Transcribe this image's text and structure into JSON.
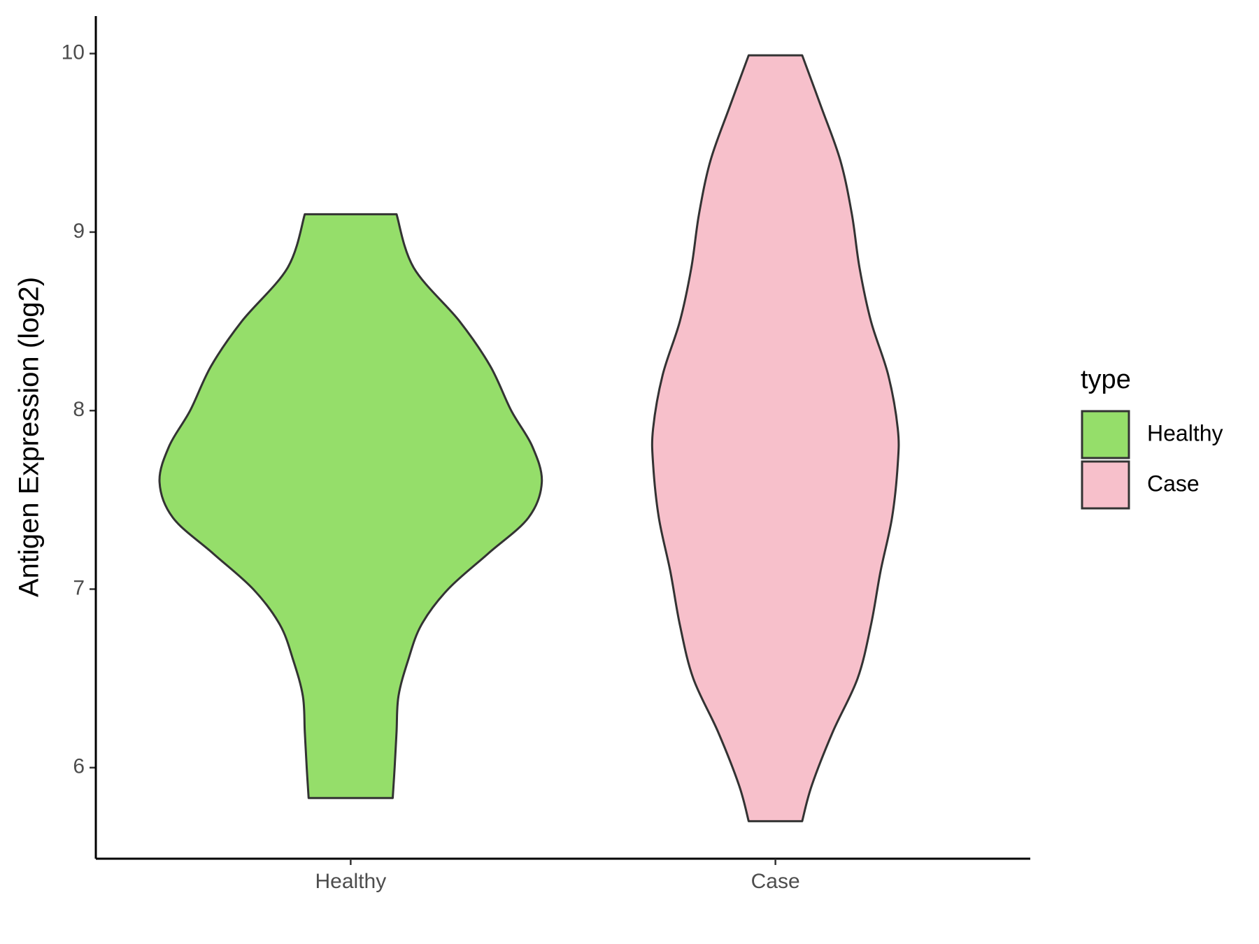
{
  "chart_data": {
    "type": "violin",
    "y_label": "Antigen Expression (log2)",
    "categories": [
      "Healthy",
      "Case"
    ],
    "legend_title": "type",
    "series": [
      {
        "name": "Healthy",
        "color": "#95DE6A",
        "y": [
          9.1,
          8.8,
          8.5,
          8.25,
          8.0,
          7.8,
          7.6,
          7.4,
          7.2,
          7.0,
          6.8,
          6.6,
          6.4,
          6.2,
          6.0,
          5.83
        ],
        "width": [
          0.24,
          0.33,
          0.57,
          0.73,
          0.84,
          0.95,
          1.0,
          0.93,
          0.72,
          0.51,
          0.37,
          0.3,
          0.25,
          0.24,
          0.23,
          0.22
        ]
      },
      {
        "name": "Case",
        "color": "#F7C0CB",
        "y": [
          9.99,
          9.7,
          9.4,
          9.1,
          8.8,
          8.5,
          8.2,
          7.9,
          7.7,
          7.4,
          7.1,
          6.8,
          6.5,
          6.2,
          5.9,
          5.7
        ],
        "width": [
          0.14,
          0.24,
          0.34,
          0.4,
          0.44,
          0.5,
          0.59,
          0.64,
          0.64,
          0.61,
          0.55,
          0.5,
          0.43,
          0.3,
          0.19,
          0.14
        ]
      }
    ],
    "ylim": [
      5.49,
      10.21
    ],
    "yticks": [
      6,
      7,
      8,
      9,
      10
    ],
    "legend": "right"
  }
}
